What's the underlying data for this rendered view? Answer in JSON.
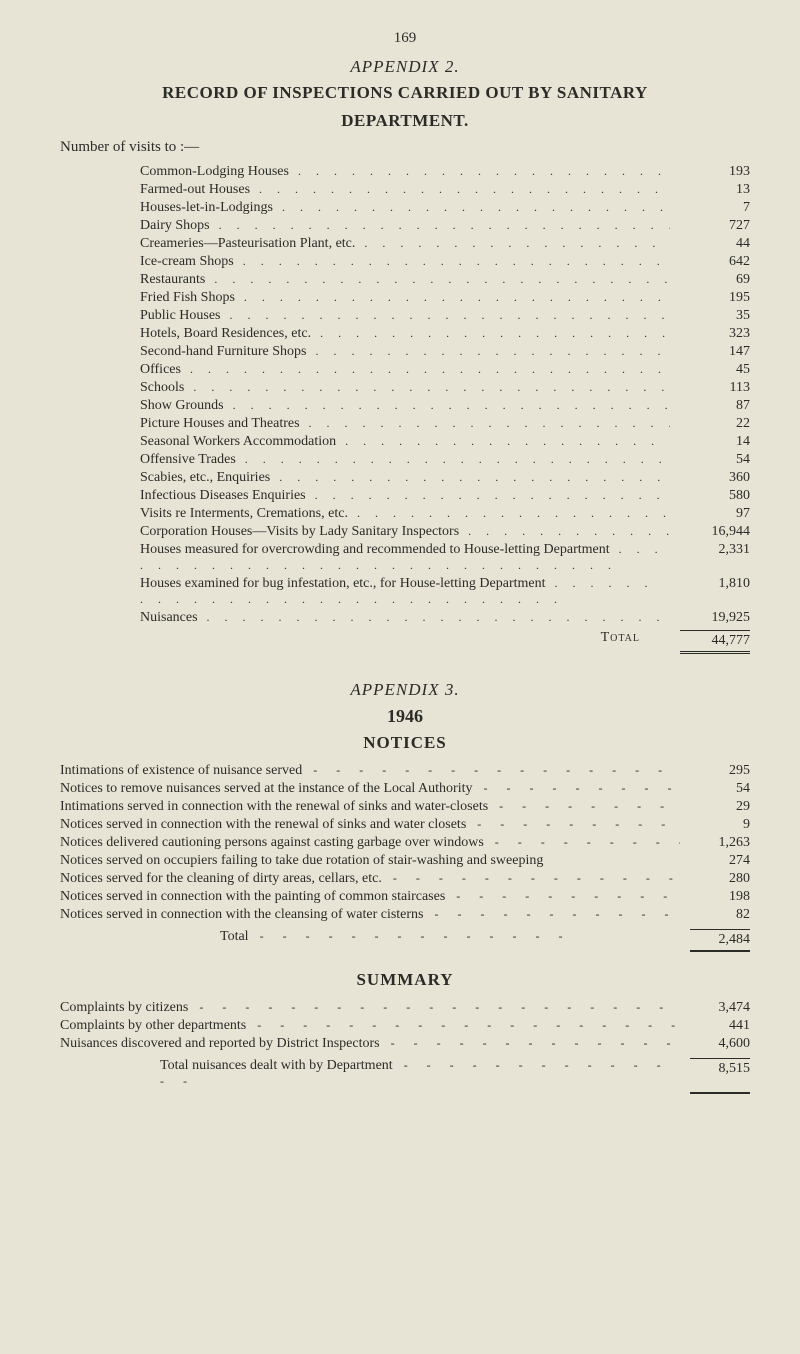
{
  "page_number": "169",
  "appendix2": {
    "title": "APPENDIX 2.",
    "heading_line1": "RECORD OF INSPECTIONS CARRIED OUT BY SANITARY",
    "heading_line2": "DEPARTMENT.",
    "intro": "Number of visits to :—",
    "rows": [
      {
        "label": "Common-Lodging Houses",
        "value": "193"
      },
      {
        "label": "Farmed-out Houses",
        "value": "13"
      },
      {
        "label": "Houses-let-in-Lodgings",
        "value": "7"
      },
      {
        "label": "Dairy Shops",
        "value": "727"
      },
      {
        "label": "Creameries—Pasteurisation Plant, etc.",
        "value": "44"
      },
      {
        "label": "Ice-cream Shops",
        "value": "642"
      },
      {
        "label": "Restaurants",
        "value": "69"
      },
      {
        "label": "Fried Fish Shops",
        "value": "195"
      },
      {
        "label": "Public Houses",
        "value": "35"
      },
      {
        "label": "Hotels, Board Residences, etc.",
        "value": "323"
      },
      {
        "label": "Second-hand Furniture Shops",
        "value": "147"
      },
      {
        "label": "Offices",
        "value": "45"
      },
      {
        "label": "Schools",
        "value": "113"
      },
      {
        "label": "Show Grounds",
        "value": "87"
      },
      {
        "label": "Picture Houses and Theatres",
        "value": "22"
      },
      {
        "label": "Seasonal Workers Accommodation",
        "value": "14"
      },
      {
        "label": "Offensive Trades",
        "value": "54"
      },
      {
        "label": "Scabies, etc., Enquiries",
        "value": "360"
      },
      {
        "label": "Infectious Diseases Enquiries",
        "value": "580"
      },
      {
        "label": "Visits re Interments, Cremations, etc.",
        "value": "97"
      },
      {
        "label": "Corporation Houses—Visits by Lady Sanitary Inspectors",
        "value": "16,944"
      },
      {
        "label": "Houses measured for overcrowding and recommended to House-letting Department",
        "value": "2,331",
        "wrap": true
      },
      {
        "label": "Houses examined for bug infestation, etc., for House-letting Department",
        "value": "1,810",
        "wrap": true
      },
      {
        "label": "Nuisances",
        "value": "19,925"
      }
    ],
    "total_label": "Total",
    "total_value": "44,777"
  },
  "appendix3": {
    "title": "APPENDIX 3.",
    "year": "1946",
    "heading": "NOTICES",
    "rows": [
      {
        "label": "Intimations of existence of nuisance served",
        "value": "295"
      },
      {
        "label": "Notices to remove nuisances served at the instance of the Local Authority",
        "value": "54"
      },
      {
        "label": "Intimations served in connection with the renewal of sinks and water-closets",
        "value": "29"
      },
      {
        "label": "Notices served in connection with the renewal of sinks and water closets",
        "value": "9"
      },
      {
        "label": "Notices delivered cautioning persons against casting garbage over windows",
        "value": "1,263"
      },
      {
        "label": "Notices served on occupiers failing to take due rotation of stair-washing and sweeping",
        "value": "274",
        "wrap": true
      },
      {
        "label": "Notices served for the cleaning of dirty areas, cellars, etc.",
        "value": "280"
      },
      {
        "label": "Notices served in connection with the painting of common staircases",
        "value": "198"
      },
      {
        "label": "Notices served in connection with the cleansing of water cisterns",
        "value": "82"
      }
    ],
    "total_label": "Total",
    "total_value": "2,484"
  },
  "summary": {
    "heading": "SUMMARY",
    "rows": [
      {
        "label": "Complaints by citizens",
        "value": "3,474"
      },
      {
        "label": "Complaints by other departments",
        "value": "441"
      },
      {
        "label": "Nuisances discovered and reported by District Inspectors",
        "value": "4,600"
      }
    ],
    "total_label": "Total nuisances dealt with by Department",
    "total_value": "8,515"
  }
}
